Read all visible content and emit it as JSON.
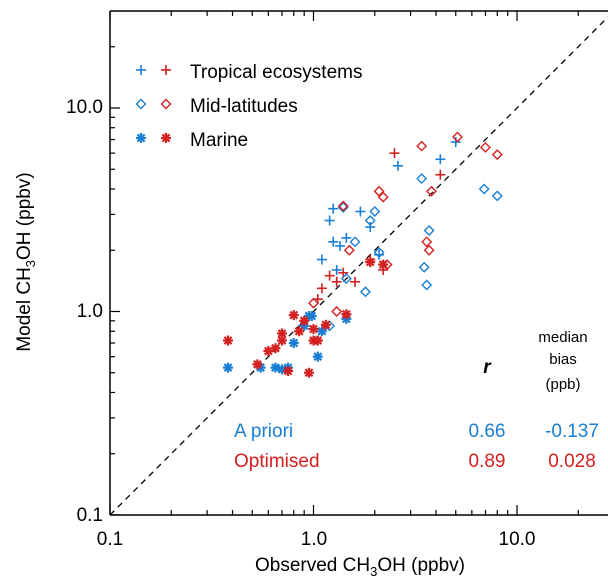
{
  "colors": {
    "apriori": "#1a7fd4",
    "optimised": "#d42020",
    "axis": "#000000"
  },
  "chart_data": {
    "type": "scatter",
    "scale": "log-log",
    "xlim": [
      0.1,
      28
    ],
    "ylim": [
      0.1,
      28
    ],
    "xticks": [
      {
        "v": 0.1,
        "label": "0.1"
      },
      {
        "v": 1.0,
        "label": "1.0"
      },
      {
        "v": 10.0,
        "label": "10.0"
      }
    ],
    "yticks": [
      {
        "v": 0.1,
        "label": "0.1"
      },
      {
        "v": 1.0,
        "label": "1.0"
      },
      {
        "v": 10.0,
        "label": "10.0"
      }
    ],
    "xlabel": {
      "pre": "Observed CH",
      "sub": "3",
      "post": "OH (ppbv)"
    },
    "ylabel": {
      "pre": "Model CH",
      "sub": "3",
      "post": "OH (ppbv)"
    },
    "one_to_one_line": true,
    "legend": [
      {
        "label": "Tropical ecosystems",
        "marker": "plus"
      },
      {
        "label": "Mid-latitudes",
        "marker": "diamond"
      },
      {
        "label": "Marine",
        "marker": "asterisk"
      }
    ],
    "stats": {
      "header_r": "r",
      "header_bias_1": "median",
      "header_bias_2": "bias",
      "header_bias_3": "(ppb)",
      "rows": [
        {
          "name": "A priori",
          "r": "0.66",
          "bias": "-0.137",
          "color": "apriori"
        },
        {
          "name": "Optimised",
          "r": "0.89",
          "bias": "0.028",
          "color": "optimised"
        }
      ]
    },
    "series": [
      {
        "group": "Tropical ecosystems",
        "model": "A priori",
        "marker": "plus",
        "color": "apriori",
        "points": [
          [
            1.1,
            1.8
          ],
          [
            1.2,
            2.8
          ],
          [
            1.25,
            3.2
          ],
          [
            1.35,
            2.1
          ],
          [
            1.45,
            2.3
          ],
          [
            1.7,
            3.1
          ],
          [
            1.9,
            2.6
          ],
          [
            2.6,
            5.2
          ],
          [
            4.2,
            5.6
          ],
          [
            1.25,
            2.2
          ],
          [
            1.3,
            1.6
          ],
          [
            2.1,
            1.9
          ],
          [
            5.0,
            6.8
          ]
        ]
      },
      {
        "group": "Tropical ecosystems",
        "model": "Optimised",
        "marker": "plus",
        "color": "optimised",
        "points": [
          [
            1.05,
            1.15
          ],
          [
            1.1,
            1.3
          ],
          [
            1.2,
            1.5
          ],
          [
            1.3,
            1.4
          ],
          [
            1.4,
            1.55
          ],
          [
            2.5,
            6.0
          ],
          [
            4.2,
            4.7
          ],
          [
            1.9,
            1.8
          ],
          [
            2.2,
            1.6
          ],
          [
            1.6,
            1.4
          ]
        ]
      },
      {
        "group": "Mid-latitudes",
        "model": "A priori",
        "marker": "diamond",
        "color": "apriori",
        "points": [
          [
            1.4,
            3.25
          ],
          [
            1.45,
            1.45
          ],
          [
            1.6,
            2.2
          ],
          [
            1.9,
            2.8
          ],
          [
            2.0,
            3.1
          ],
          [
            3.4,
            4.5
          ],
          [
            3.5,
            1.65
          ],
          [
            3.6,
            1.35
          ],
          [
            3.7,
            2.5
          ],
          [
            6.9,
            4.0
          ],
          [
            8.0,
            3.7
          ],
          [
            1.2,
            0.85
          ],
          [
            2.1,
            1.95
          ],
          [
            1.8,
            1.25
          ]
        ]
      },
      {
        "group": "Mid-latitudes",
        "model": "Optimised",
        "marker": "diamond",
        "color": "optimised",
        "points": [
          [
            1.0,
            1.1
          ],
          [
            1.3,
            1.0
          ],
          [
            1.4,
            3.3
          ],
          [
            1.5,
            2.0
          ],
          [
            2.1,
            3.9
          ],
          [
            2.2,
            3.65
          ],
          [
            2.3,
            1.7
          ],
          [
            3.4,
            6.5
          ],
          [
            3.6,
            2.2
          ],
          [
            3.7,
            2.0
          ],
          [
            3.8,
            3.9
          ],
          [
            5.1,
            7.2
          ],
          [
            7.0,
            6.4
          ],
          [
            8.0,
            5.9
          ]
        ]
      },
      {
        "group": "Marine",
        "model": "A priori",
        "marker": "asterisk",
        "color": "apriori",
        "points": [
          [
            0.38,
            0.53
          ],
          [
            0.55,
            0.53
          ],
          [
            0.65,
            0.53
          ],
          [
            0.7,
            0.52
          ],
          [
            0.75,
            0.53
          ],
          [
            0.8,
            0.7
          ],
          [
            0.9,
            0.85
          ],
          [
            0.95,
            0.95
          ],
          [
            1.05,
            0.6
          ],
          [
            1.1,
            0.8
          ],
          [
            1.45,
            0.92
          ],
          [
            0.98,
            0.95
          ]
        ]
      },
      {
        "group": "Marine",
        "model": "Optimised",
        "marker": "asterisk",
        "color": "optimised",
        "points": [
          [
            0.38,
            0.72
          ],
          [
            0.53,
            0.55
          ],
          [
            0.6,
            0.64
          ],
          [
            0.65,
            0.66
          ],
          [
            0.7,
            0.78
          ],
          [
            0.7,
            0.72
          ],
          [
            0.75,
            0.51
          ],
          [
            0.8,
            0.96
          ],
          [
            0.85,
            0.8
          ],
          [
            0.9,
            0.9
          ],
          [
            0.95,
            0.5
          ],
          [
            1.0,
            0.72
          ],
          [
            1.0,
            0.82
          ],
          [
            1.05,
            0.72
          ],
          [
            1.15,
            0.86
          ],
          [
            1.45,
            0.97
          ],
          [
            1.9,
            1.75
          ],
          [
            2.2,
            1.7
          ]
        ]
      }
    ]
  }
}
